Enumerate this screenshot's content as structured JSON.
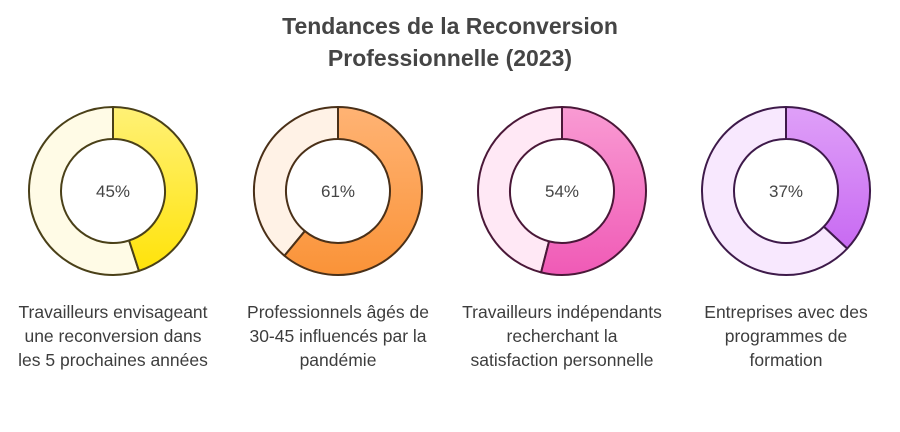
{
  "title": {
    "line1": "Tendances de la Reconversion",
    "line2": "Professionnelle (2023)"
  },
  "items": [
    {
      "value_label": "45%",
      "value": 45,
      "label": "Travailleurs envisageant une reconversion dans les 5 prochaines années",
      "color_light": "#fffbe6",
      "color_fill_start": "#fff176",
      "color_fill_end": "#ffe30a",
      "stroke": "#4a4018"
    },
    {
      "value_label": "61%",
      "value": 61,
      "label": "Professionnels âgés de 30-45 influencés par la pandémie",
      "color_light": "#fff2e6",
      "color_fill_start": "#ffb374",
      "color_fill_end": "#fa9338",
      "stroke": "#4a3018"
    },
    {
      "value_label": "54%",
      "value": 54,
      "label": "Travailleurs indépendants recherchant la satisfaction personnelle",
      "color_light": "#ffe8f5",
      "color_fill_start": "#f99bd3",
      "color_fill_end": "#f05ab6",
      "stroke": "#4a1838"
    },
    {
      "value_label": "37%",
      "value": 37,
      "label": "Entreprises avec des programmes de formation",
      "color_light": "#f8e8fe",
      "color_fill_start": "#dfa0f8",
      "color_fill_end": "#c86af2",
      "stroke": "#3e1a4a"
    }
  ],
  "chart_data": {
    "type": "pie",
    "subtype": "donut",
    "title": "Tendances de la Reconversion Professionnelle (2023)",
    "categories": [
      "Travailleurs envisageant une reconversion dans les 5 prochaines années",
      "Professionnels âgés de 30-45 influencés par la pandémie",
      "Travailleurs indépendants recherchant la satisfaction personnelle",
      "Entreprises avec des programmes de formation"
    ],
    "values": [
      45,
      61,
      54,
      37
    ],
    "unit": "%",
    "legend": "none"
  }
}
